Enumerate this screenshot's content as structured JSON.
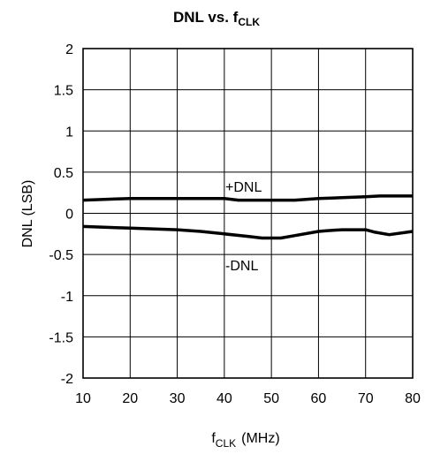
{
  "chart_data": {
    "type": "line",
    "title": "DNL vs. f",
    "title_subscript": "CLK",
    "xlabel": "f",
    "xlabel_subscript": "CLK",
    "xlabel_unit": "(MHz)",
    "ylabel": "DNL (LSB)",
    "xlim": [
      10,
      80
    ],
    "ylim": [
      -2,
      2
    ],
    "xticks": [
      10,
      20,
      30,
      40,
      50,
      60,
      70,
      80
    ],
    "yticks": [
      2,
      1.5,
      1,
      0.5,
      0,
      -0.5,
      -1,
      -1.5,
      -2
    ],
    "ytick_labels": [
      "2",
      "1.5",
      "1",
      "0.5",
      "0",
      "-0.5",
      "-1",
      "-1.5",
      "-2"
    ],
    "grid": true,
    "line_color": "#000000",
    "series": [
      {
        "name": "+DNL",
        "x": [
          10,
          20,
          30,
          40,
          43,
          50,
          55,
          60,
          65,
          70,
          73,
          80
        ],
        "y": [
          0.16,
          0.18,
          0.18,
          0.18,
          0.16,
          0.16,
          0.16,
          0.18,
          0.19,
          0.2,
          0.21,
          0.21
        ]
      },
      {
        "name": "-DNL",
        "x": [
          10,
          20,
          30,
          35,
          40,
          45,
          48,
          52,
          55,
          60,
          62,
          65,
          70,
          72,
          75,
          80
        ],
        "y": [
          -0.16,
          -0.18,
          -0.2,
          -0.22,
          -0.25,
          -0.28,
          -0.3,
          -0.3,
          -0.27,
          -0.22,
          -0.21,
          -0.2,
          -0.2,
          -0.23,
          -0.26,
          -0.22
        ]
      }
    ]
  }
}
